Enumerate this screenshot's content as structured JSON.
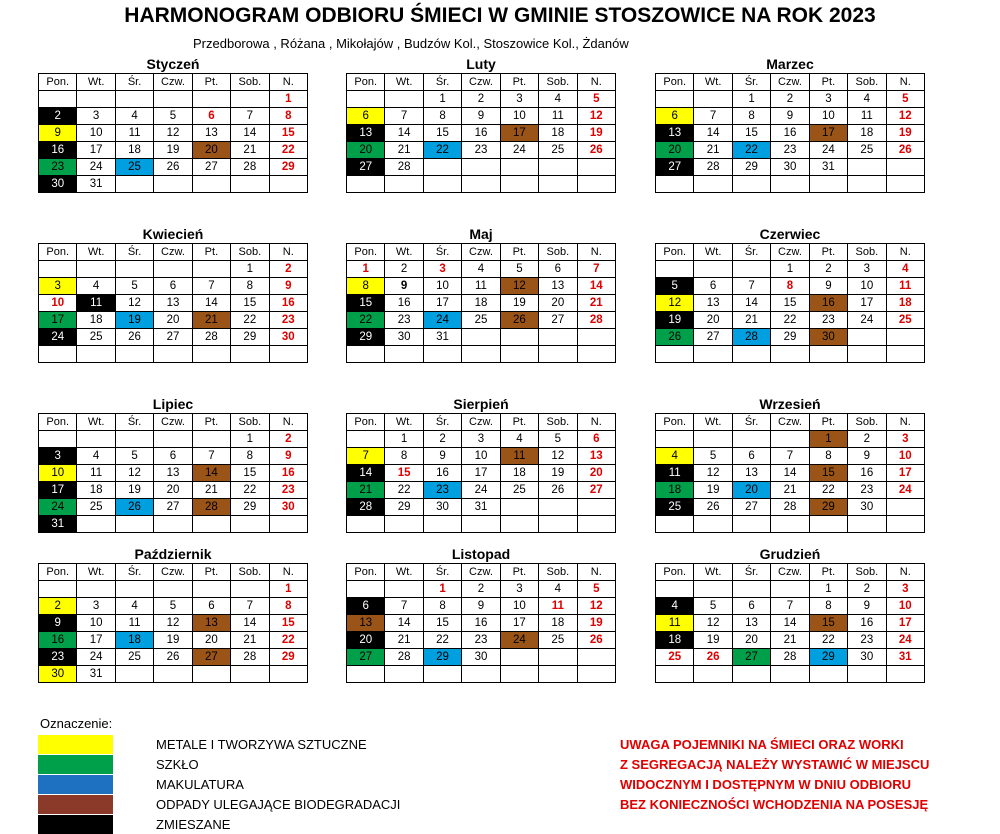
{
  "title": "HARMONOGRAM ODBIORU ŚMIECI W GMINIE STOSZOWICE NA ROK 2023",
  "subtitle": "Przedborowa , Różana , Mikołajów , Budzów Kol., Stoszowice Kol., Żdanów",
  "day_headers": [
    "Pon.",
    "Wt.",
    "Śr.",
    "Czw.",
    "Pt.",
    "Sob.",
    "N."
  ],
  "colors": {
    "y": "#ffff00",
    "g": "#00a04a",
    "b": "#00a0e0",
    "br": "#9a5418",
    "k": "#000000"
  },
  "months": [
    {
      "name": "Styczeń",
      "offset": 6,
      "days": 31,
      "marks": {
        "2": "k",
        "9": "y",
        "16": "k",
        "20": "br",
        "23": "g",
        "25": "b",
        "30": "k"
      },
      "red": [
        6
      ]
    },
    {
      "name": "Luty",
      "offset": 2,
      "days": 28,
      "marks": {
        "6": "y",
        "13": "k",
        "17": "br",
        "20": "g",
        "22": "b",
        "27": "k"
      },
      "red": []
    },
    {
      "name": "Marzec",
      "offset": 2,
      "days": 31,
      "marks": {
        "6": "y",
        "13": "k",
        "17": "br",
        "20": "g",
        "22": "b",
        "27": "k"
      },
      "red": []
    },
    {
      "name": "Kwiecień",
      "offset": 5,
      "days": 30,
      "marks": {
        "3": "y",
        "11": "k",
        "17": "g",
        "19": "b",
        "21": "br",
        "24": "k"
      },
      "red": [
        10
      ]
    },
    {
      "name": "Maj",
      "offset": 0,
      "days": 31,
      "marks": {
        "8": "y",
        "12": "br",
        "15": "k",
        "22": "g",
        "24": "b",
        "26": "br",
        "29": "k"
      },
      "red": [
        1,
        3
      ],
      "bold": [
        9
      ]
    },
    {
      "name": "Czerwiec",
      "offset": 3,
      "days": 30,
      "marks": {
        "5": "k",
        "12": "y",
        "16": "br",
        "19": "k",
        "26": "g",
        "28": "b",
        "30": "br"
      },
      "red": [
        8
      ]
    },
    {
      "name": "Lipiec",
      "offset": 5,
      "days": 31,
      "marks": {
        "3": "k",
        "10": "y",
        "14": "br",
        "17": "k",
        "24": "g",
        "26": "b",
        "28": "br",
        "31": "k"
      },
      "red": []
    },
    {
      "name": "Sierpień",
      "offset": 1,
      "days": 31,
      "marks": {
        "7": "y",
        "11": "br",
        "14": "k",
        "21": "g",
        "23": "b",
        "28": "k"
      },
      "red": [
        15
      ]
    },
    {
      "name": "Wrzesień",
      "offset": 4,
      "days": 30,
      "marks": {
        "1": "br",
        "4": "y",
        "11": "k",
        "15": "br",
        "18": "g",
        "20": "b",
        "25": "k",
        "29": "br"
      },
      "red": []
    },
    {
      "name": "Październik",
      "offset": 6,
      "days": 31,
      "marks": {
        "2": "y",
        "9": "k",
        "13": "br",
        "16": "g",
        "18": "b",
        "23": "k",
        "27": "br",
        "30": "y"
      },
      "red": []
    },
    {
      "name": "Listopad",
      "offset": 2,
      "days": 30,
      "marks": {
        "6": "k",
        "13": "br",
        "20": "k",
        "24": "br",
        "27": "g",
        "29": "b"
      },
      "red": [
        1,
        11
      ]
    },
    {
      "name": "Grudzień",
      "offset": 4,
      "days": 31,
      "marks": {
        "4": "k",
        "11": "y",
        "15": "br",
        "18": "k",
        "27": "g",
        "29": "b"
      },
      "red": [
        25,
        26
      ]
    }
  ],
  "legend": {
    "title": "Oznaczenie:",
    "items": [
      {
        "label": "METALE I TWORZYWA SZTUCZNE",
        "color": "#ffff00"
      },
      {
        "label": "SZKŁO",
        "color": "#00a04a"
      },
      {
        "label": "MAKULATURA",
        "color": "#1e70c0"
      },
      {
        "label": "ODPADY ULEGAJĄCE BIODEGRADACJI",
        "color": "#8b3a2a"
      },
      {
        "label": "ZMIESZANE",
        "color": "#000000"
      }
    ]
  },
  "warning": [
    "UWAGA POJEMNIKI NA ŚMIECI ORAZ WORKI",
    "Z SEGREGACJĄ NALEŻY WYSTAWIĆ W MIEJSCU",
    "WIDOCZNYM I DOSTĘPNYM W DNIU ODBIORU",
    "BEZ KONIECZNOŚCI WCHODZENIA NA POSESJĘ"
  ]
}
